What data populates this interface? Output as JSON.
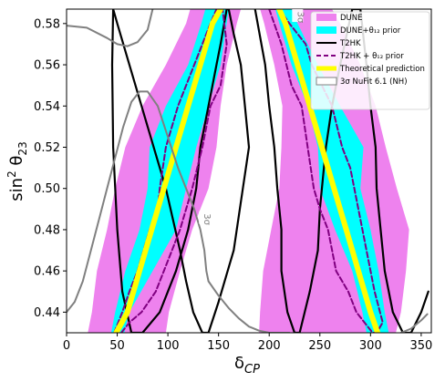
{
  "chart_data": {
    "type": "area",
    "xlabel": "δ_CP",
    "ylabel": "sin² θ₂₃",
    "xlim": [
      0,
      360
    ],
    "ylim": [
      0.43,
      0.587
    ],
    "x_ticks": [
      "0",
      "50",
      "100",
      "150",
      "200",
      "250",
      "300",
      "350"
    ],
    "y_ticks": [
      "0.44",
      "0.46",
      "0.48",
      "0.50",
      "0.52",
      "0.54",
      "0.56",
      "0.58"
    ],
    "x_tick_values": [
      0,
      50,
      100,
      150,
      200,
      250,
      300,
      350
    ],
    "y_tick_values": [
      0.44,
      0.46,
      0.48,
      0.5,
      0.52,
      0.54,
      0.56,
      0.58
    ],
    "legend": {
      "placement": "top-right",
      "entries": [
        {
          "label": "DUNE",
          "style": "fill",
          "color": "#ee82ee"
        },
        {
          "label": "DUNE+θ₁₂ prior",
          "style": "fill",
          "color": "#00ffff"
        },
        {
          "label": "T2HK",
          "style": "solid-line",
          "color": "#000000"
        },
        {
          "label": "T2HK + θ₁₂ prior",
          "style": "dashed-line",
          "color": "#800080"
        },
        {
          "label": "Theoretical prediction",
          "style": "thick-line",
          "color": "#ffff00"
        },
        {
          "label": "3σ NuFit 6.1 (NH)",
          "style": "outline",
          "color": "#808080"
        }
      ]
    },
    "annotations": [
      {
        "text": "3σ",
        "x": 136,
        "y": 0.485
      },
      {
        "text": "3σ",
        "x": 228,
        "y": 0.583
      }
    ],
    "series": [
      {
        "name": "DUNE",
        "kind": "band",
        "color": "#ee82ee",
        "branches": [
          {
            "y": [
              0.43,
              0.44,
              0.46,
              0.48,
              0.5,
              0.52,
              0.54,
              0.56,
              0.58,
              0.587
            ],
            "lo": [
              21,
              25,
              30,
              40,
              48,
              58,
              75,
              98,
              118,
              122
            ],
            "hi": [
              98,
              101,
              112,
              124,
              140,
              148,
              152,
              158,
              168,
              172
            ]
          },
          {
            "y": [
              0.43,
              0.44,
              0.46,
              0.48,
              0.5,
              0.52,
              0.54,
              0.56,
              0.58,
              0.587
            ],
            "lo": [
              190,
              191,
              194,
              202,
              210,
              212,
              213,
              205,
              195,
              191
            ],
            "hi": [
              325,
              330,
              335,
              338,
              326,
              315,
              305,
              290,
              270,
              262
            ]
          }
        ]
      },
      {
        "name": "DUNE+θ₁₂ prior",
        "kind": "band",
        "color": "#00ffff",
        "branches": [
          {
            "y": [
              0.43,
              0.44,
              0.46,
              0.48,
              0.5,
              0.52,
              0.54,
              0.56,
              0.58,
              0.587
            ],
            "lo": [
              44,
              48,
              58,
              72,
              80,
              82,
              98,
              120,
              133,
              137
            ],
            "hi": [
              57,
              62,
              85,
              108,
              118,
              128,
              140,
              152,
              158,
              160
            ]
          },
          {
            "y": [
              0.43,
              0.44,
              0.46,
              0.48,
              0.5,
              0.52,
              0.54,
              0.56,
              0.58,
              0.587
            ],
            "lo": [
              296,
              292,
              282,
              265,
              250,
              248,
              238,
              222,
              210,
              206
            ],
            "hi": [
              318,
              314,
              308,
              300,
              290,
              293,
              270,
              248,
              228,
              222
            ]
          }
        ]
      },
      {
        "name": "T2HK",
        "kind": "contour",
        "color": "#000000",
        "branches": [
          {
            "x": [
              46,
              50,
              62,
              80,
              98,
              112,
              118,
              125,
              134,
              140,
              150,
              165,
              180,
              176,
              172,
              165,
              160,
              158,
              152,
              148,
              140,
              132,
              128,
              120,
              108,
              92,
              75,
              64,
              55,
              50,
              46,
              45,
              46
            ],
            "y": [
              0.587,
              0.58,
              0.56,
              0.53,
              0.5,
              0.47,
              0.455,
              0.44,
              0.43,
              0.43,
              0.445,
              0.47,
              0.52,
              0.54,
              0.56,
              0.575,
              0.587,
              0.587,
              0.57,
              0.56,
              0.54,
              0.52,
              0.5,
              0.48,
              0.46,
              0.44,
              0.43,
              0.43,
              0.45,
              0.48,
              0.52,
              0.56,
              0.587
            ]
          },
          {
            "x": [
              186,
              196,
              200,
              205,
              208,
              212,
              212,
              218,
              225,
              230,
              240,
              248,
              250,
              256,
              262,
              270,
              282,
              290,
              296,
              300,
              305,
              306,
              310,
              314,
              322,
              332,
              340,
              350,
              357
            ],
            "y": [
              0.587,
              0.56,
              0.54,
              0.52,
              0.5,
              0.48,
              0.46,
              0.44,
              0.43,
              0.43,
              0.45,
              0.47,
              0.49,
              0.52,
              0.54,
              0.56,
              0.587,
              0.587,
              0.56,
              0.54,
              0.52,
              0.5,
              0.48,
              0.46,
              0.44,
              0.43,
              0.43,
              0.44,
              0.45
            ]
          }
        ]
      },
      {
        "name": "T2HK + θ₁₂ prior",
        "kind": "contour",
        "color": "#800080",
        "branches": [
          {
            "x": [
              47,
              55,
              62,
              70,
              82,
              90,
              92,
              98,
              110,
              118,
              126,
              134,
              142,
              148,
              154,
              158,
              152,
              142,
              134,
              124,
              112,
              104,
              96,
              88,
              74,
              62,
              54,
              47
            ],
            "y": [
              0.43,
              0.44,
              0.45,
              0.46,
              0.48,
              0.49,
              0.5,
              0.52,
              0.54,
              0.55,
              0.56,
              0.57,
              0.58,
              0.587,
              0.587,
              0.57,
              0.55,
              0.54,
              0.52,
              0.5,
              0.48,
              0.47,
              0.46,
              0.45,
              0.44,
              0.435,
              0.43,
              0.43
            ]
          },
          {
            "x": [
              200,
              212,
              222,
              232,
              238,
              244,
              250,
              258,
              266,
              278,
              286,
              294,
              302,
              306,
              312,
              304,
              296,
              288,
              280,
              272,
              262,
              252,
              242,
              236,
              228,
              220,
              210,
              200
            ],
            "y": [
              0.587,
              0.57,
              0.55,
              0.54,
              0.52,
              0.5,
              0.49,
              0.48,
              0.46,
              0.45,
              0.44,
              0.435,
              0.43,
              0.43,
              0.435,
              0.45,
              0.47,
              0.49,
              0.51,
              0.52,
              0.54,
              0.55,
              0.56,
              0.57,
              0.575,
              0.58,
              0.587,
              0.587
            ]
          }
        ]
      },
      {
        "name": "Theoretical prediction",
        "kind": "line",
        "color": "#ffff00",
        "branches": [
          {
            "x": [
              49,
              60,
              72,
              84,
              96,
              108,
              120,
              132,
              144,
              152
            ],
            "y": [
              0.43,
              0.44,
              0.46,
              0.48,
              0.5,
              0.52,
              0.54,
              0.56,
              0.58,
              0.587
            ]
          },
          {
            "x": [
              307,
              300,
              288,
              276,
              264,
              252,
              240,
              228,
              216,
              210
            ],
            "y": [
              0.43,
              0.44,
              0.46,
              0.48,
              0.5,
              0.52,
              0.54,
              0.56,
              0.58,
              0.587
            ]
          }
        ]
      },
      {
        "name": "3σ NuFit 6.1 (NH)",
        "kind": "contour",
        "color": "#808080",
        "branches": [
          {
            "x": [
              0,
              20,
              40,
              50,
              60,
              70,
              80,
              85
            ],
            "y": [
              0.579,
              0.578,
              0.573,
              0.57,
              0.569,
              0.571,
              0.577,
              0.587
            ]
          },
          {
            "x": [
              0,
              8,
              16,
              24,
              32,
              40,
              48,
              56,
              64,
              72,
              80,
              90,
              100,
              110,
              118,
              126,
              132,
              136,
              138,
              140,
              150,
              160,
              170,
              180,
              190,
              200,
              210,
              220
            ],
            "y": [
              0.44,
              0.445,
              0.455,
              0.47,
              0.485,
              0.5,
              0.515,
              0.53,
              0.542,
              0.547,
              0.547,
              0.54,
              0.525,
              0.51,
              0.5,
              0.49,
              0.48,
              0.47,
              0.46,
              0.455,
              0.448,
              0.442,
              0.437,
              0.433,
              0.431,
              0.43,
              0.43,
              0.43
            ]
          },
          {
            "x": [
              330,
              340,
              350,
              356
            ],
            "y": [
              0.43,
              0.432,
              0.436,
              0.439
            ]
          }
        ]
      }
    ]
  }
}
